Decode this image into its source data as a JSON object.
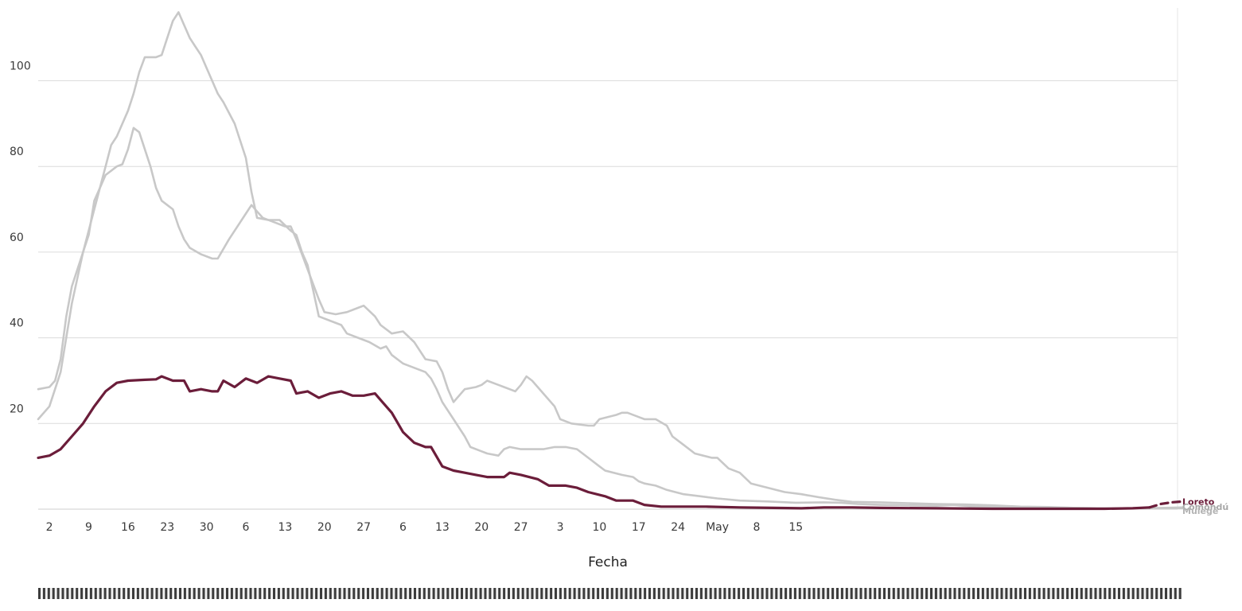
{
  "chart_data": {
    "type": "line",
    "xlabel": "Fecha",
    "ylabel": "",
    "ylim": [
      0,
      117
    ],
    "x_tick_labels": [
      "2",
      "9",
      "16",
      "23",
      "30",
      "6",
      "13",
      "20",
      "27",
      "6",
      "13",
      "20",
      "27",
      "3",
      "10",
      "17",
      "24",
      "May",
      "8",
      "15"
    ],
    "y_tick_labels": [
      "20",
      "40",
      "60",
      "80",
      "100"
    ],
    "y_ticks": [
      20,
      40,
      60,
      80,
      100
    ],
    "grid": true,
    "legend": "end-of-line labels at right",
    "x_day_range": [
      0,
      203
    ],
    "series": [
      {
        "name": "Loreto",
        "color": "#6b1d3a",
        "highlight": true,
        "points": [
          [
            0,
            12
          ],
          [
            2,
            12.5
          ],
          [
            4,
            14
          ],
          [
            6,
            17
          ],
          [
            8,
            20
          ],
          [
            10,
            24
          ],
          [
            12,
            27.5
          ],
          [
            14,
            29.5
          ],
          [
            16,
            30
          ],
          [
            19,
            30.2
          ],
          [
            21,
            30.3
          ],
          [
            22,
            31
          ],
          [
            24,
            30
          ],
          [
            26,
            30
          ],
          [
            27,
            27.5
          ],
          [
            29,
            28
          ],
          [
            31,
            27.5
          ],
          [
            32,
            27.5
          ],
          [
            33,
            30
          ],
          [
            35,
            28.5
          ],
          [
            37,
            30.5
          ],
          [
            39,
            29.5
          ],
          [
            41,
            31
          ],
          [
            43,
            30.5
          ],
          [
            45,
            30
          ],
          [
            46,
            27
          ],
          [
            48,
            27.5
          ],
          [
            50,
            26
          ],
          [
            52,
            27
          ],
          [
            54,
            27.5
          ],
          [
            56,
            26.5
          ],
          [
            58,
            26.5
          ],
          [
            60,
            27
          ],
          [
            61,
            25.5
          ],
          [
            63,
            22.5
          ],
          [
            65,
            18
          ],
          [
            67,
            15.5
          ],
          [
            69,
            14.5
          ],
          [
            70,
            14.5
          ],
          [
            72,
            10
          ],
          [
            74,
            9
          ],
          [
            76,
            8.5
          ],
          [
            78,
            8
          ],
          [
            80,
            7.5
          ],
          [
            83,
            7.5
          ],
          [
            84,
            8.5
          ],
          [
            86,
            8
          ],
          [
            89,
            7
          ],
          [
            91,
            5.5
          ],
          [
            94,
            5.5
          ],
          [
            96,
            5
          ],
          [
            98,
            4
          ],
          [
            101,
            3
          ],
          [
            103,
            2
          ],
          [
            106,
            2
          ],
          [
            108,
            1
          ],
          [
            111,
            0.6
          ],
          [
            114,
            0.6
          ],
          [
            119,
            0.6
          ],
          [
            125,
            0.4
          ],
          [
            131,
            0.3
          ],
          [
            136,
            0.2
          ],
          [
            140,
            0.4
          ],
          [
            145,
            0.4
          ],
          [
            150,
            0.3
          ],
          [
            160,
            0.2
          ],
          [
            170,
            0.1
          ],
          [
            180,
            0.1
          ],
          [
            190,
            0.1
          ],
          [
            195,
            0.2
          ],
          [
            198,
            0.4
          ]
        ],
        "projection": [
          [
            198,
            0.4
          ],
          [
            199,
            0.8
          ],
          [
            200,
            1.2
          ],
          [
            202,
            1.6
          ],
          [
            204,
            1.8
          ]
        ]
      },
      {
        "name": "Comondú",
        "color": "#c8c8c8",
        "highlight": false,
        "points": [
          [
            0,
            21
          ],
          [
            2,
            24
          ],
          [
            4,
            32
          ],
          [
            6,
            48
          ],
          [
            8,
            60
          ],
          [
            9,
            64
          ],
          [
            10,
            72
          ],
          [
            12,
            78
          ],
          [
            14,
            80
          ],
          [
            15,
            80.5
          ],
          [
            16,
            84
          ],
          [
            17,
            89
          ],
          [
            18,
            88
          ],
          [
            20,
            80
          ],
          [
            21,
            75
          ],
          [
            22,
            72
          ],
          [
            23,
            71
          ],
          [
            24,
            70
          ],
          [
            25,
            66
          ],
          [
            26,
            63
          ],
          [
            27,
            61
          ],
          [
            29,
            59.5
          ],
          [
            31,
            58.5
          ],
          [
            32,
            58.5
          ],
          [
            34,
            63
          ],
          [
            36,
            67
          ],
          [
            37,
            69
          ],
          [
            38,
            71
          ],
          [
            39,
            69.5
          ],
          [
            40,
            68
          ],
          [
            42,
            67
          ],
          [
            44,
            66
          ],
          [
            45,
            66
          ],
          [
            46,
            63
          ],
          [
            48,
            56
          ],
          [
            50,
            49
          ],
          [
            51,
            46
          ],
          [
            53,
            45.5
          ],
          [
            55,
            46
          ],
          [
            57,
            47
          ],
          [
            58,
            47.5
          ],
          [
            60,
            45
          ],
          [
            61,
            43
          ],
          [
            63,
            41
          ],
          [
            65,
            41.5
          ],
          [
            67,
            39
          ],
          [
            68,
            37
          ],
          [
            69,
            35
          ],
          [
            71,
            34.5
          ],
          [
            72,
            32
          ],
          [
            73,
            28
          ],
          [
            74,
            25
          ],
          [
            76,
            28
          ],
          [
            78,
            28.5
          ],
          [
            79,
            29
          ],
          [
            80,
            30
          ],
          [
            82,
            29
          ],
          [
            84,
            28
          ],
          [
            85,
            27.5
          ],
          [
            86,
            29
          ],
          [
            87,
            31
          ],
          [
            88,
            30
          ],
          [
            90,
            27
          ],
          [
            92,
            24
          ],
          [
            93,
            21
          ],
          [
            95,
            20
          ],
          [
            98,
            19.5
          ],
          [
            99,
            19.5
          ],
          [
            100,
            21
          ],
          [
            103,
            22
          ],
          [
            104,
            22.5
          ],
          [
            105,
            22.5
          ],
          [
            107,
            21.5
          ],
          [
            108,
            21
          ],
          [
            110,
            21
          ],
          [
            112,
            19.5
          ],
          [
            113,
            17
          ],
          [
            115,
            15
          ],
          [
            117,
            13
          ],
          [
            120,
            12
          ],
          [
            121,
            12
          ],
          [
            123,
            9.5
          ],
          [
            125,
            8.5
          ],
          [
            127,
            6
          ],
          [
            130,
            5
          ],
          [
            133,
            4
          ],
          [
            136,
            3.5
          ],
          [
            139,
            2.8
          ],
          [
            142,
            2.2
          ],
          [
            145,
            1.7
          ],
          [
            150,
            1.6
          ],
          [
            155,
            1.4
          ],
          [
            160,
            1.2
          ],
          [
            165,
            1.1
          ],
          [
            170,
            0.9
          ],
          [
            175,
            0.6
          ],
          [
            180,
            0.5
          ],
          [
            185,
            0.3
          ],
          [
            190,
            0.2
          ],
          [
            195,
            0.2
          ],
          [
            200,
            0.3
          ],
          [
            204,
            0.4
          ]
        ]
      },
      {
        "name": "Mulegé",
        "color": "#c8c8c8",
        "highlight": false,
        "points": [
          [
            0,
            28
          ],
          [
            2,
            28.5
          ],
          [
            3,
            30
          ],
          [
            4,
            35
          ],
          [
            5,
            45
          ],
          [
            6,
            52
          ],
          [
            8,
            60
          ],
          [
            10,
            70
          ],
          [
            12,
            80
          ],
          [
            13,
            85
          ],
          [
            14,
            87
          ],
          [
            16,
            93
          ],
          [
            17,
            97
          ],
          [
            18,
            102
          ],
          [
            19,
            105.5
          ],
          [
            21,
            105.5
          ],
          [
            22,
            106
          ],
          [
            23,
            110
          ],
          [
            24,
            114
          ],
          [
            25,
            116
          ],
          [
            26,
            113
          ],
          [
            27,
            110
          ],
          [
            28,
            108
          ],
          [
            29,
            106
          ],
          [
            30,
            103
          ],
          [
            32,
            97
          ],
          [
            33,
            95
          ],
          [
            35,
            90
          ],
          [
            37,
            82
          ],
          [
            38,
            74
          ],
          [
            39,
            68
          ],
          [
            41,
            67.5
          ],
          [
            43,
            67.5
          ],
          [
            45,
            65
          ],
          [
            46,
            64
          ],
          [
            47,
            60
          ],
          [
            48,
            57
          ],
          [
            49,
            51
          ],
          [
            50,
            45
          ],
          [
            52,
            44
          ],
          [
            54,
            43
          ],
          [
            55,
            41
          ],
          [
            57,
            40
          ],
          [
            59,
            39
          ],
          [
            61,
            37.5
          ],
          [
            62,
            38
          ],
          [
            63,
            36
          ],
          [
            65,
            34
          ],
          [
            67,
            33
          ],
          [
            69,
            32
          ],
          [
            70,
            30.5
          ],
          [
            71,
            28
          ],
          [
            72,
            25
          ],
          [
            74,
            21
          ],
          [
            76,
            17
          ],
          [
            77,
            14.5
          ],
          [
            79,
            13.5
          ],
          [
            80,
            13
          ],
          [
            82,
            12.5
          ],
          [
            83,
            14
          ],
          [
            84,
            14.5
          ],
          [
            86,
            14
          ],
          [
            88,
            14
          ],
          [
            90,
            14
          ],
          [
            92,
            14.5
          ],
          [
            94,
            14.5
          ],
          [
            96,
            14
          ],
          [
            98,
            12
          ],
          [
            100,
            10
          ],
          [
            101,
            9
          ],
          [
            104,
            8
          ],
          [
            106,
            7.5
          ],
          [
            107,
            6.5
          ],
          [
            108,
            6
          ],
          [
            110,
            5.5
          ],
          [
            112,
            4.5
          ],
          [
            115,
            3.5
          ],
          [
            118,
            3
          ],
          [
            121,
            2.5
          ],
          [
            125,
            2
          ],
          [
            130,
            1.8
          ],
          [
            135,
            1.5
          ],
          [
            140,
            1.6
          ],
          [
            143,
            1.5
          ],
          [
            146,
            1.2
          ],
          [
            150,
            1
          ],
          [
            155,
            0.9
          ],
          [
            160,
            0.8
          ],
          [
            163,
            1
          ],
          [
            166,
            0.7
          ],
          [
            170,
            0.6
          ],
          [
            175,
            0.5
          ],
          [
            180,
            0.4
          ],
          [
            185,
            0.3
          ],
          [
            190,
            0.2
          ],
          [
            195,
            0.2
          ],
          [
            200,
            0.2
          ],
          [
            204,
            0.2
          ]
        ]
      }
    ],
    "end_labels": [
      {
        "text": "Loreto",
        "color": "#6b1d3a",
        "y_value": 1.8
      },
      {
        "text": "Comondú",
        "color": "#a8a8a8",
        "y_value": 0.6
      },
      {
        "text": "Mulegé",
        "color": "#b4b4b4",
        "y_value": -0.4
      }
    ]
  }
}
